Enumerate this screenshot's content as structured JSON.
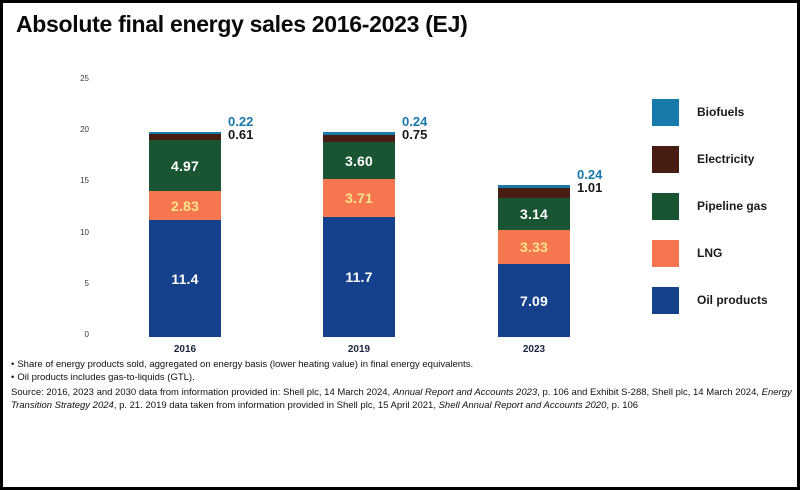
{
  "title": "Absolute final energy sales 2016-2023 (EJ)",
  "chart_data": {
    "type": "bar",
    "stacked": true,
    "unit": "EJ",
    "title": "Absolute final energy sales 2016-2023 (EJ)",
    "categories": [
      "2016",
      "2019",
      "2023"
    ],
    "series": [
      {
        "name": "Oil products",
        "color": "#15418c",
        "label_color": "#ffffff",
        "label_outside": false,
        "values": [
          11.4,
          11.7,
          7.09
        ],
        "labels": [
          "11.4",
          "11.7",
          "7.09"
        ]
      },
      {
        "name": "LNG",
        "color": "#f6764f",
        "label_color": "#ffe48a",
        "label_outside": false,
        "values": [
          2.83,
          3.71,
          3.33
        ],
        "labels": [
          "2.83",
          "3.71",
          "3.33"
        ]
      },
      {
        "name": "Pipeline gas",
        "color": "#1a5533",
        "label_color": "#ffffff",
        "label_outside": false,
        "values": [
          4.97,
          3.6,
          3.14
        ],
        "labels": [
          "4.97",
          "3.60",
          "3.14"
        ]
      },
      {
        "name": "Electricity",
        "color": "#461c13",
        "label_color": "#1a1a1a",
        "label_outside": true,
        "values": [
          0.61,
          0.75,
          1.01
        ],
        "labels": [
          "0.61",
          "0.75",
          "1.01"
        ]
      },
      {
        "name": "Biofuels",
        "color": "#1879ab",
        "label_color": "#1879ab",
        "label_outside": true,
        "values": [
          0.22,
          0.24,
          0.24
        ],
        "labels": [
          "0.22",
          "0.24",
          "0.24"
        ]
      }
    ],
    "ylim": [
      0,
      25
    ],
    "yticks": [
      0,
      5,
      10,
      15,
      20,
      25
    ],
    "grid": false,
    "legend_position": "right"
  },
  "legend": [
    {
      "label": "Biofuels",
      "color": "#1879ab"
    },
    {
      "label": "Electricity",
      "color": "#461c13"
    },
    {
      "label": "Pipeline gas",
      "color": "#1a5533"
    },
    {
      "label": "LNG",
      "color": "#f6764f"
    },
    {
      "label": "Oil products",
      "color": "#15418c"
    }
  ],
  "footnotes": {
    "bullet": "•",
    "notes": [
      "Share of energy products sold, aggregated on energy basis (lower heating value) in final energy equivalents.",
      "Oil products includes gas-to-liquids (GTL)."
    ],
    "source_segments": [
      {
        "text": "Source: 2016, 2023 and 2030 data from information provided in: Shell plc, 14 March 2024, ",
        "italic": false
      },
      {
        "text": "Annual Report and Accounts 2023",
        "italic": true
      },
      {
        "text": ", p. 106 and Exhibit S-288, Shell plc, 14 March 2024, ",
        "italic": false
      },
      {
        "text": "Energy Transition Strategy 2024",
        "italic": true
      },
      {
        "text": ", p. 21. 2019 data taken from information provided in Shell plc, 15 April 2021, ",
        "italic": false
      },
      {
        "text": "Shell Annual Report and Accounts 2020",
        "italic": true
      },
      {
        "text": ", p. 106",
        "italic": false
      }
    ]
  }
}
